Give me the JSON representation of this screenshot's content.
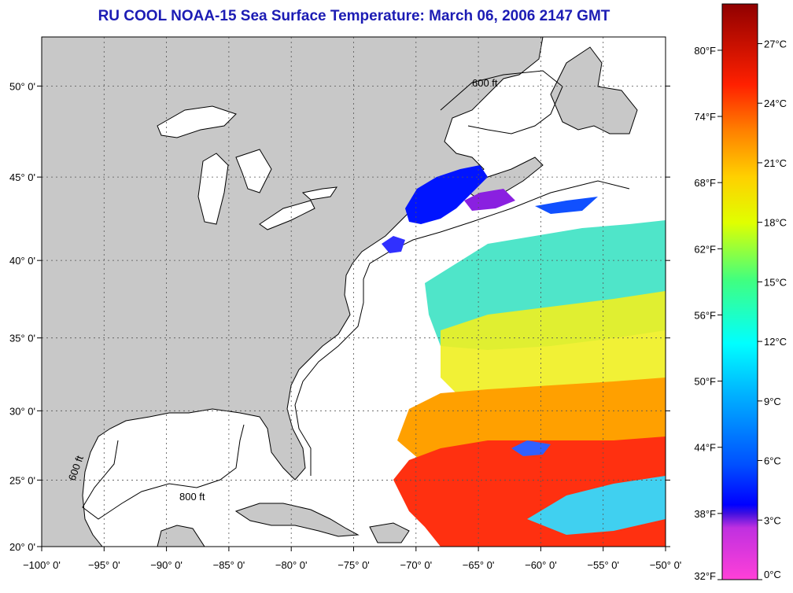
{
  "title": "RU COOL  NOAA-15  Sea Surface Temperature:  March 06, 2006 2147 GMT",
  "map": {
    "lon_range": [
      -100,
      -50
    ],
    "lat_range": [
      20,
      52.5
    ],
    "lon_ticks": [
      "−100° 0'",
      "−95° 0'",
      "−90° 0'",
      "−85° 0'",
      "−80° 0'",
      "−75° 0'",
      "−70° 0'",
      "−65° 0'",
      "−60° 0'",
      "−55° 0'",
      "−50° 0'"
    ],
    "lat_ticks": [
      "20° 0'",
      "25° 0'",
      "30° 0'",
      "35° 0'",
      "40° 0'",
      "45° 0'",
      "50° 0'"
    ],
    "contour_label": "600 ft",
    "contour_label_2": "800 ft",
    "colors": {
      "land": "#c8c8c8",
      "ocean": "#ffffff",
      "grid": "#555555"
    }
  },
  "colorbar": {
    "fahrenheit": [
      "32°F",
      "38°F",
      "44°F",
      "50°F",
      "56°F",
      "62°F",
      "68°F",
      "74°F",
      "80°F"
    ],
    "celsius": [
      "0°C",
      "3°C",
      "6°C",
      "9°C",
      "12°C",
      "15°C",
      "18°C",
      "21°C",
      "24°C",
      "27°C"
    ],
    "colors": [
      "#ff40d8",
      "#7a1ee0",
      "#0020ff",
      "#0090ff",
      "#00ffff",
      "#40ff80",
      "#ffff00",
      "#ffb000",
      "#ff3000",
      "#900000"
    ]
  }
}
